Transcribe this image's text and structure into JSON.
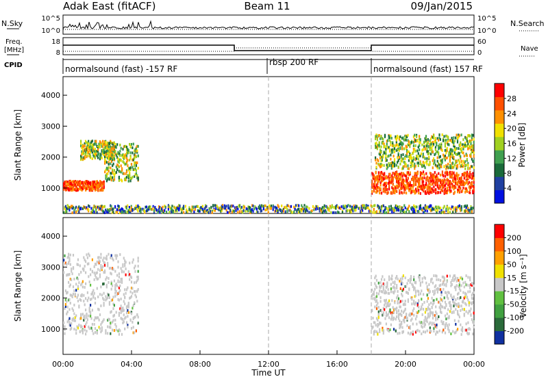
{
  "header": {
    "site": "Adak East (fitACF)",
    "beam": "Beam 11",
    "date": "09/Jan/2015"
  },
  "top_panels": {
    "nsky": {
      "label": "N.Sky",
      "ticks": [
        "10^5",
        "10^0"
      ]
    },
    "nsearch": {
      "label": "N.Search",
      "ticks": [
        "10^5",
        "10^0"
      ]
    },
    "freq": {
      "label_line1": "Freq.",
      "label_line2": "[MHz]",
      "ticks": [
        "18",
        "8"
      ]
    },
    "nave": {
      "label": "Nave",
      "ticks": [
        "60",
        "0"
      ]
    },
    "cpid": {
      "label": "CPID",
      "segments": [
        "normalsound (fast) -157 RF",
        "rbsp 200 RF",
        "normalsound (fast) 157 RF"
      ]
    }
  },
  "chart_data": [
    {
      "type": "heatmap",
      "name": "power",
      "ylabel": "Slant Range [km]",
      "yticks": [
        1000,
        2000,
        3000,
        4000
      ],
      "ylim": [
        180,
        4600
      ],
      "xlim": [
        0,
        24
      ],
      "xticks": [
        "00:00",
        "04:00",
        "08:00",
        "12:00",
        "16:00",
        "20:00",
        "00:00"
      ],
      "xlabel": "Time UT",
      "colorbar": {
        "label": "Power [dB]",
        "ticks": [
          "28",
          "24",
          "20",
          "16",
          "12",
          "8",
          "4"
        ],
        "colors": [
          "#0010e0",
          "#2040a0",
          "#1a6a3a",
          "#40a050",
          "#a0d020",
          "#f0e000",
          "#ff9000",
          "#ff5000",
          "#ff0000"
        ]
      },
      "regions": [
        {
          "t": [
            0.0,
            2.4
          ],
          "r": [
            900,
            1200
          ],
          "level": "high"
        },
        {
          "t": [
            1.0,
            3.0
          ],
          "r": [
            1900,
            2500
          ],
          "level": "mid"
        },
        {
          "t": [
            2.4,
            4.4
          ],
          "r": [
            1200,
            2400
          ],
          "level": "mid"
        },
        {
          "t": [
            18.0,
            24.0
          ],
          "r": [
            800,
            1500
          ],
          "level": "high"
        },
        {
          "t": [
            18.2,
            24.0
          ],
          "r": [
            1600,
            2700
          ],
          "level": "mid"
        },
        {
          "t": [
            0.0,
            24.0
          ],
          "r": [
            180,
            420
          ],
          "level": "low"
        }
      ]
    },
    {
      "type": "heatmap",
      "name": "velocity",
      "ylabel": "Slant Range [km]",
      "yticks": [
        1000,
        2000,
        3000,
        4000
      ],
      "ylim": [
        180,
        4600
      ],
      "xlim": [
        0,
        24
      ],
      "xticks": [
        "00:00",
        "04:00",
        "08:00",
        "12:00",
        "16:00",
        "20:00",
        "00:00"
      ],
      "xlabel": "Time UT",
      "colorbar": {
        "label": "Velocity [m s⁻¹]",
        "ticks": [
          "200",
          "100",
          "50",
          "15",
          "-15",
          "-50",
          "-100",
          "-200"
        ],
        "colors": [
          "#1030a0",
          "#2a6a3a",
          "#40a040",
          "#60c040",
          "#c8c8c8",
          "#f0e000",
          "#ffa000",
          "#ff6000",
          "#ff0000"
        ]
      },
      "regions": [
        {
          "t": [
            0.0,
            4.4
          ],
          "r": [
            800,
            3400
          ],
          "level": "ground"
        },
        {
          "t": [
            18.0,
            24.0
          ],
          "r": [
            800,
            2700
          ],
          "level": "ground"
        }
      ]
    }
  ]
}
